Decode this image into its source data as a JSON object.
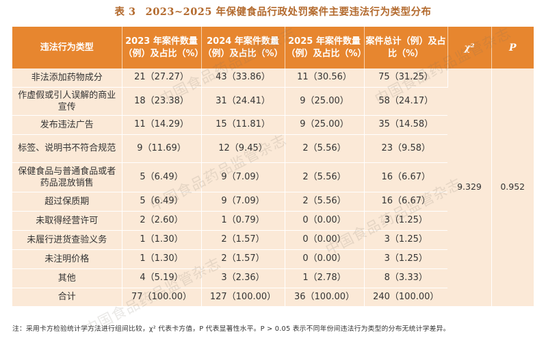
{
  "title": {
    "number": "表 3",
    "text": "2023~2025 年保健食品行政处罚案件主要违法行为类型分布"
  },
  "table": {
    "headers": [
      "违法行为类型",
      "2023 年案件数量（例）及占比（%）",
      "2024 年案件数量（例）及占比（%）",
      "2025 年案件数量（例）及占比（%）",
      "案件总计（例）及占比（%）",
      "χ²",
      "P"
    ],
    "rows": [
      [
        "非法添加药物成分",
        "21（27.27）",
        "43（33.86）",
        "11（30.56）",
        "75（31.25）"
      ],
      [
        "作虚假或引人误解的商业宣传",
        "18（23.38）",
        "31（24.41）",
        "9（25.00）",
        "58（24.17）"
      ],
      [
        "发布违法广告",
        "11（14.29）",
        "15（11.81）",
        "9（25.00）",
        "35（14.58）"
      ],
      [
        "标签、说明书不符合规范",
        "9（11.69）",
        "12（9.45）",
        "2（5.56）",
        "23（9.58）"
      ],
      [
        "保健食品与普通食品或者药品混放销售",
        "5（6.49）",
        "9（7.09）",
        "2（5.56）",
        "16（6.67）"
      ],
      [
        "超过保质期",
        "5（6.49）",
        "9（7.09）",
        "2（5.56）",
        "16（6.67）"
      ],
      [
        "未取得经营许可",
        "2（2.60）",
        "1（0.79）",
        "0（0.00）",
        "3（1.25）"
      ],
      [
        "未履行进货查验义务",
        "1（1.30）",
        "2（1.57）",
        "0（0.00）",
        "3（1.25）"
      ],
      [
        "未注明价格",
        "1（1.30）",
        "2（1.57）",
        "0（0.00）",
        "3（1.25）"
      ],
      [
        "其他",
        "4（5.19）",
        "3（2.36）",
        "1（2.78）",
        "8（3.33）"
      ],
      [
        "合计",
        "77（100.00）",
        "127（100.00）",
        "36（100.00）",
        "240（100.00）"
      ]
    ],
    "chi_square": "9.329",
    "p_value": "0.952"
  },
  "note": "注：采用卡方检验统计学方法进行组间比较，χ² 代表卡方值，P 代表显著性水平。P > 0.05 表示不同年份间违法行为类型的分布无统计学差异。",
  "watermark": "中国食品药品监管杂志"
}
